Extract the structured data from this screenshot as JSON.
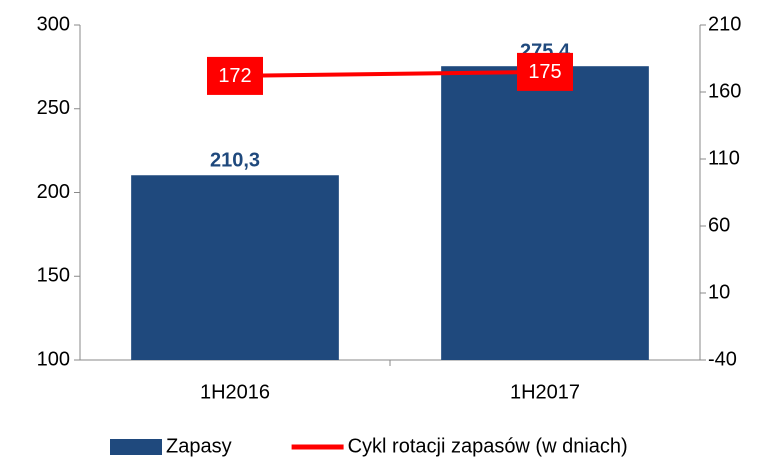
{
  "chart_data": {
    "type": "bar",
    "categories": [
      "1H2016",
      "1H2017"
    ],
    "series": [
      {
        "name": "Zapasy",
        "type": "bar",
        "color": "#1f497d",
        "values": [
          210.3,
          275.4
        ],
        "value_labels": [
          "210,3",
          "275,4"
        ]
      },
      {
        "name": "Cykl rotacji zapasów (w dniach)",
        "type": "line",
        "axis": "y2",
        "color": "#ff0000",
        "values": [
          172,
          175
        ]
      }
    ],
    "ylim": [
      100,
      300
    ],
    "yticks": [
      100,
      150,
      200,
      250,
      300
    ],
    "y2lim": [
      -40,
      210
    ],
    "y2ticks": [
      -40,
      10,
      60,
      110,
      160,
      210
    ],
    "legend": "bottom"
  }
}
